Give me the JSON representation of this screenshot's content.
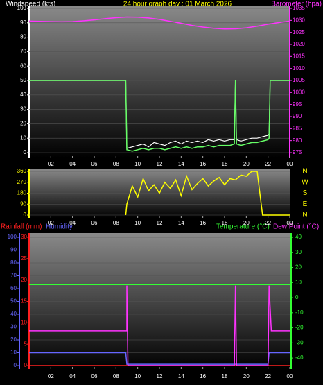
{
  "chart_data": [
    {
      "type": "line",
      "title": "24 hour graph day : 01 March 2026",
      "ylabel": "Windspeed (kts)",
      "y2label": "Barometer (hpa)",
      "xlim": [
        0,
        24
      ],
      "xticks": [
        {
          "value": 2,
          "label": "02"
        },
        {
          "value": 4,
          "label": "04"
        },
        {
          "value": 6,
          "label": "06"
        },
        {
          "value": 8,
          "label": "08"
        },
        10,
        12,
        14,
        16,
        18,
        20,
        22,
        {
          "value": 24,
          "label": "00"
        }
      ],
      "ylim": [
        0,
        100
      ],
      "yticks": [
        {
          "value": 0,
          "label": "0"
        },
        10,
        20,
        30,
        40,
        50,
        60,
        70,
        80,
        90,
        100
      ],
      "y2lim": [
        975,
        1035
      ],
      "y2ticks": [
        975,
        980,
        985,
        990,
        995,
        1000,
        1005,
        1010,
        1015,
        1020,
        1025,
        1030,
        1035
      ],
      "grid": true,
      "series": [
        {
          "color": "#ffffff",
          "x": [
            0,
            8.9,
            9,
            9.5,
            10,
            10.5,
            11,
            11.5,
            12,
            12.5,
            13,
            13.5,
            14,
            14.5,
            15,
            15.5,
            16,
            16.5,
            17,
            17.5,
            18,
            18.5,
            18.9,
            19,
            19.1,
            19.5,
            20,
            20.5,
            21,
            21.5,
            22,
            22.1,
            22.2,
            24
          ],
          "values": [
            50,
            50,
            3,
            4,
            5,
            6,
            4,
            7,
            6,
            5,
            7,
            8,
            6,
            8,
            7,
            8,
            7,
            9,
            8,
            9,
            8,
            9,
            9,
            50,
            9,
            8,
            9,
            10,
            10,
            11,
            12,
            13,
            50,
            50
          ]
        },
        {
          "color": "#66ff66",
          "x": [
            0,
            8.9,
            9,
            9.5,
            10,
            10.5,
            11,
            11.5,
            12,
            12.5,
            13,
            13.5,
            14,
            14.5,
            15,
            15.5,
            16,
            16.5,
            17,
            17.5,
            18,
            18.5,
            18.9,
            19,
            19.1,
            19.5,
            20,
            20.5,
            21,
            21.5,
            22,
            22.1,
            22.2,
            24
          ],
          "values": [
            50,
            50,
            2,
            1,
            2,
            3,
            2,
            3,
            3,
            2,
            3,
            4,
            3,
            4,
            3,
            4,
            4,
            5,
            4,
            5,
            5,
            5,
            6,
            50,
            6,
            5,
            6,
            7,
            7,
            8,
            9,
            10,
            50,
            50
          ]
        },
        {
          "color": "#ff33ff",
          "axis": "y2",
          "x": [
            0,
            1,
            2,
            3,
            4,
            5,
            6,
            7,
            8,
            9,
            10,
            11,
            12,
            13,
            14,
            15,
            16,
            17,
            18,
            19,
            20,
            21,
            22,
            23,
            24
          ],
          "values": [
            1029.7,
            1029.6,
            1029.5,
            1029.4,
            1029.5,
            1029.8,
            1030.2,
            1030.7,
            1031.1,
            1031.4,
            1031.3,
            1031.0,
            1030.4,
            1029.6,
            1028.8,
            1027.9,
            1027.2,
            1026.7,
            1026.4,
            1026.5,
            1026.9,
            1027.6,
            1028.4,
            1029.1,
            1029.7
          ]
        }
      ]
    },
    {
      "type": "line",
      "xlim": [
        0,
        24
      ],
      "xticks": [
        {
          "value": 2,
          "label": "02"
        },
        {
          "value": 4,
          "label": "04"
        },
        {
          "value": 6,
          "label": "06"
        },
        {
          "value": 8,
          "label": "08"
        },
        10,
        12,
        14,
        16,
        18,
        20,
        22,
        {
          "value": 24,
          "label": "00"
        }
      ],
      "ylim": [
        0,
        360
      ],
      "yticks": [
        {
          "value": 0,
          "label": "0"
        },
        90,
        180,
        270,
        360
      ],
      "compass": [
        "N",
        "E",
        "S",
        "W",
        "N"
      ],
      "grid": true,
      "series": [
        {
          "color": "#ffff00",
          "x": [
            8.9,
            9,
            9.5,
            10,
            10.5,
            11,
            11.5,
            12,
            12.5,
            13,
            13.5,
            14,
            14.5,
            15,
            15.5,
            16,
            16.5,
            17,
            17.5,
            18,
            18.5,
            19,
            19.5,
            20,
            20.5,
            21,
            21.5,
            24
          ],
          "values": [
            0,
            90,
            240,
            150,
            300,
            200,
            250,
            180,
            270,
            220,
            290,
            160,
            320,
            210,
            260,
            300,
            240,
            280,
            310,
            250,
            300,
            290,
            330,
            320,
            360,
            360,
            0,
            0
          ]
        }
      ]
    },
    {
      "type": "line",
      "xlim": [
        0,
        24
      ],
      "xticks": [
        {
          "value": 2,
          "label": "02"
        },
        {
          "value": 4,
          "label": "04"
        },
        {
          "value": 6,
          "label": "06"
        },
        {
          "value": 8,
          "label": "08"
        },
        10,
        12,
        14,
        16,
        18,
        20,
        22,
        {
          "value": 24,
          "label": "00"
        }
      ],
      "ylim": [
        0,
        100
      ],
      "yticks": [
        {
          "value": 0,
          "label": "0"
        },
        10,
        20,
        30,
        40,
        50,
        60,
        70,
        80,
        90,
        100
      ],
      "y3lim": [
        0,
        30
      ],
      "y3ticks": [
        {
          "value": 0,
          "label": "0"
        },
        5,
        10,
        15,
        20,
        25,
        30
      ],
      "y2lim": [
        -45,
        40
      ],
      "y2ticks": [
        -40,
        -30,
        -20,
        -10,
        0,
        10,
        20,
        30,
        40
      ],
      "grid": true,
      "series": [
        {
          "name": "Rainfall (mm)",
          "color": "#ff2020",
          "axis": "y3",
          "x": [
            0,
            24
          ],
          "values": [
            0,
            0
          ]
        },
        {
          "name": "Humidity",
          "color": "#6666ff",
          "x": [
            0,
            8.9,
            9,
            22,
            22.1,
            24
          ],
          "values": [
            10,
            10,
            1,
            1,
            10,
            10
          ]
        },
        {
          "name": "Temperature (°C)",
          "color": "#33ff33",
          "axis": "y2",
          "x": [
            0,
            24
          ],
          "values": [
            8.6,
            8.6
          ]
        },
        {
          "name": "Dew Point (°C)",
          "color": "#ff33ff",
          "axis": "y2",
          "x": [
            0,
            9,
            9,
            9.1,
            18.9,
            19,
            19.1,
            22,
            22.1,
            22.3,
            24
          ],
          "values": [
            -22,
            -22,
            8,
            -45,
            -45,
            8,
            -45,
            -45,
            8,
            -22,
            -22
          ]
        }
      ]
    }
  ]
}
